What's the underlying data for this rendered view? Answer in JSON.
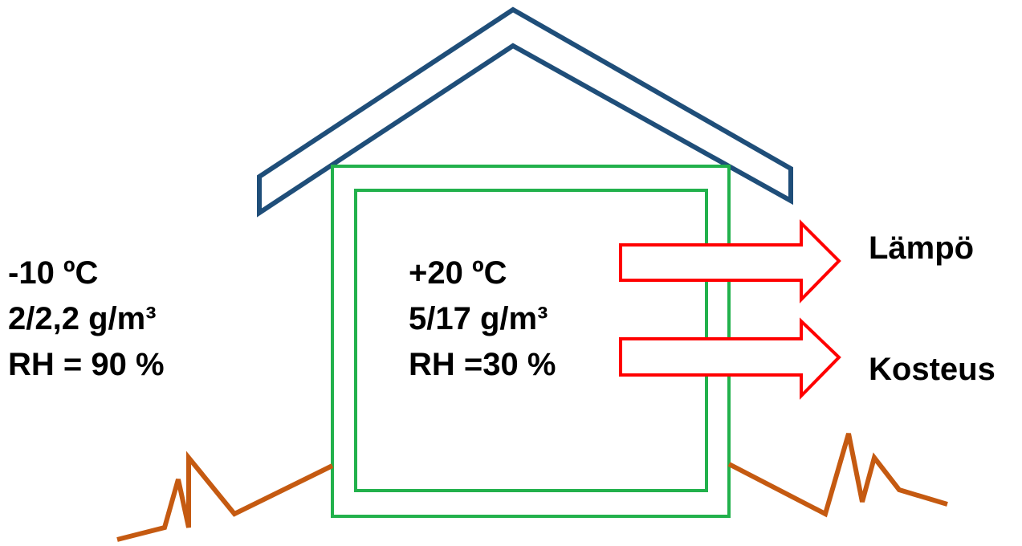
{
  "outside": {
    "lines": [
      "-10 ºC",
      "2/2,2 g/m³",
      "RH = 90 %"
    ]
  },
  "inside": {
    "lines": [
      "+20 ºC",
      "5/17 g/m³",
      "RH =30 %"
    ]
  },
  "flows": [
    "Lämpö",
    "Kosteus"
  ]
}
